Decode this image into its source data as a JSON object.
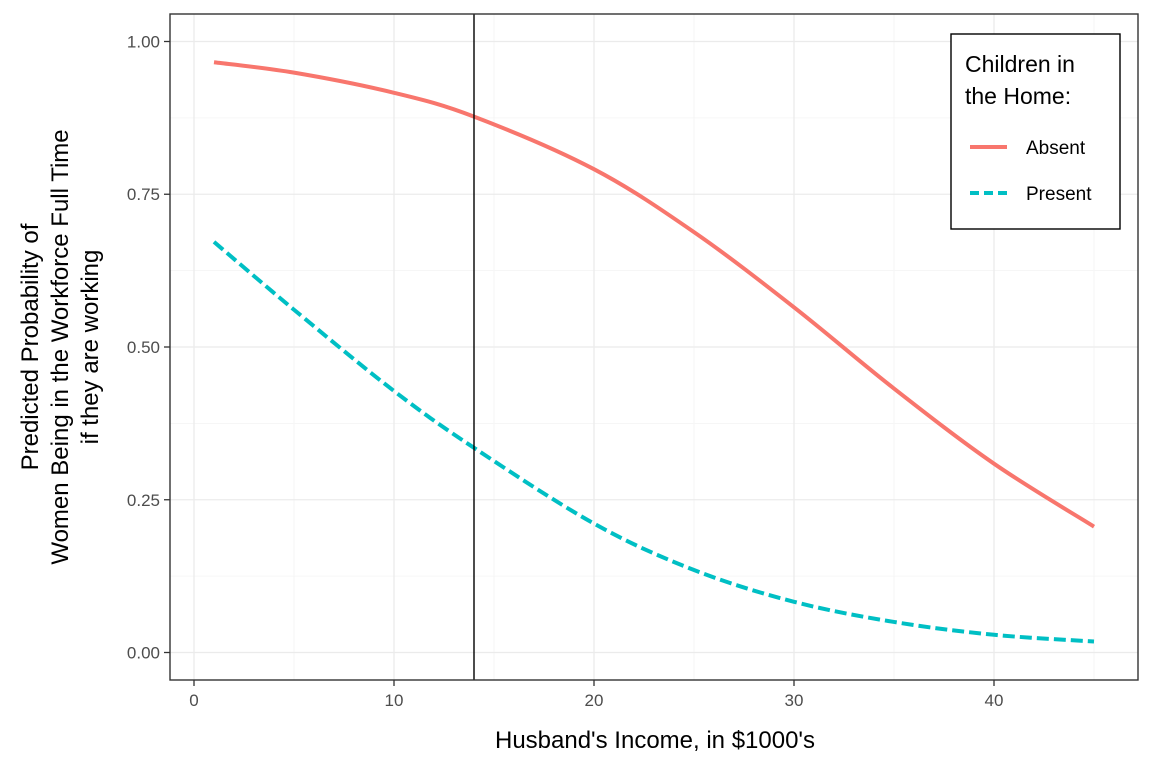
{
  "chart_data": {
    "type": "line",
    "xlabel": "Husband's Income, in $1000's",
    "ylabel_lines": [
      "Predicted Probability of",
      "Women Being in the Workforce Full Time",
      "if they are working"
    ],
    "xlim": [
      -1.2,
      47.2
    ],
    "ylim": [
      -0.045,
      1.045
    ],
    "x_ticks": [
      0,
      10,
      20,
      30,
      40
    ],
    "x_tick_labels": [
      "0",
      "10",
      "20",
      "30",
      "40"
    ],
    "y_ticks": [
      0,
      0.25,
      0.5,
      0.75,
      1
    ],
    "y_tick_labels": [
      "0.00",
      "0.25",
      "0.50",
      "0.75",
      "1.00"
    ],
    "grid": true,
    "reference_line_x": 14,
    "legend": {
      "title_lines": [
        "Children in",
        "the Home:"
      ],
      "position": "top-right"
    },
    "series": [
      {
        "name": "Absent",
        "color": "#F8766D",
        "dash": "solid",
        "x": [
          1,
          5,
          10,
          14,
          20,
          25,
          30,
          35,
          40,
          45
        ],
        "y": [
          0.966,
          0.949,
          0.916,
          0.877,
          0.791,
          0.688,
          0.565,
          0.432,
          0.309,
          0.206
        ]
      },
      {
        "name": "Present",
        "color": "#00BFC4",
        "dash": "dashed",
        "x": [
          1,
          5,
          10,
          14,
          20,
          25,
          30,
          35,
          40,
          45
        ],
        "y": [
          0.672,
          0.561,
          0.428,
          0.335,
          0.211,
          0.135,
          0.083,
          0.05,
          0.029,
          0.018
        ]
      }
    ]
  }
}
